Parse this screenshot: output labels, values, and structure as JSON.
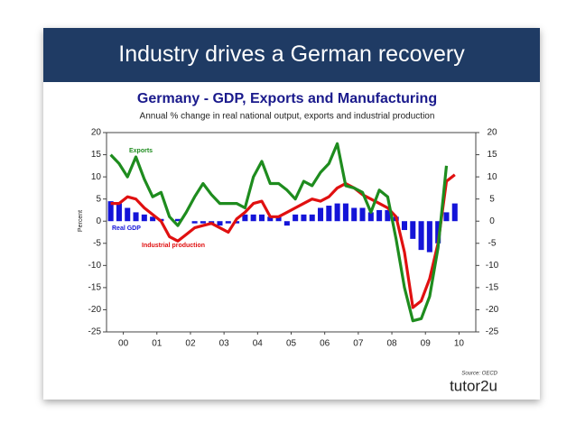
{
  "header": {
    "title": "Industry drives a German recovery"
  },
  "chart_data": {
    "type": "line",
    "title": "Germany - GDP, Exports and Manufacturing",
    "subtitle": "Annual % change in real national output, exports and industrial production",
    "y_label": "Percent",
    "source": "Source: OECD",
    "logo": "tutor2u",
    "annotations": [
      "Exports",
      "Real GDP",
      "Industrial production"
    ],
    "x": [
      2000.125,
      2000.375,
      2000.625,
      2000.875,
      2001.125,
      2001.375,
      2001.625,
      2001.875,
      2002.125,
      2002.375,
      2002.625,
      2002.875,
      2003.125,
      2003.375,
      2003.625,
      2003.875,
      2004.125,
      2004.375,
      2004.625,
      2004.875,
      2005.125,
      2005.375,
      2005.625,
      2005.875,
      2006.125,
      2006.375,
      2006.625,
      2006.875,
      2007.125,
      2007.375,
      2007.625,
      2007.875,
      2008.125,
      2008.375,
      2008.625,
      2008.875,
      2009.125,
      2009.375,
      2009.625,
      2009.875,
      2010.125,
      2010.375
    ],
    "xlim": [
      2000,
      2011
    ],
    "xticks": [
      {
        "value": 2000.5,
        "label": "00"
      },
      {
        "value": 2001.5,
        "label": "01"
      },
      {
        "value": 2002.5,
        "label": "02"
      },
      {
        "value": 2003.5,
        "label": "03"
      },
      {
        "value": 2004.5,
        "label": "04"
      },
      {
        "value": 2005.5,
        "label": "05"
      },
      {
        "value": 2006.5,
        "label": "06"
      },
      {
        "value": 2007.5,
        "label": "07"
      },
      {
        "value": 2008.5,
        "label": "08"
      },
      {
        "value": 2009.5,
        "label": "09"
      },
      {
        "value": 2010.5,
        "label": "10"
      }
    ],
    "ylim": [
      -25,
      20
    ],
    "yticks": [
      20,
      15,
      10,
      5,
      0,
      -5,
      -10,
      -15,
      -20,
      -25
    ],
    "y2lim": [
      -25,
      20
    ],
    "y2ticks": [
      20,
      15,
      10,
      5,
      0,
      -5,
      -10,
      -15,
      -20,
      -25
    ],
    "grid": false,
    "series": [
      {
        "name": "Real GDP",
        "type": "bar",
        "color": "#1414d8",
        "values": [
          4.5,
          4,
          3,
          2,
          1.5,
          1,
          0.5,
          0,
          0.5,
          0,
          -0.5,
          -0.5,
          -0.5,
          -1,
          -0.5,
          -0.5,
          1.5,
          1.5,
          1.5,
          1,
          1,
          -1,
          1.5,
          1.5,
          1.5,
          3,
          3.5,
          4,
          4,
          3,
          3,
          2,
          2.5,
          2.5,
          1,
          -2,
          -4,
          -6.5,
          -7,
          -5,
          2,
          4
        ]
      },
      {
        "name": "Industrial production",
        "type": "line",
        "color": "#e01010",
        "values": [
          4,
          4,
          5.5,
          5,
          3,
          1.5,
          0,
          -3.5,
          -4.5,
          -3,
          -1.5,
          -1,
          -0.5,
          -1.5,
          -2.5,
          0.5,
          2,
          4,
          4.5,
          1,
          1,
          2,
          3,
          4,
          5,
          4.5,
          5.5,
          7.5,
          8.5,
          7.5,
          6,
          5,
          4,
          3,
          1,
          -7,
          -19.5,
          -18,
          -13,
          -5,
          9,
          10.5
        ]
      },
      {
        "name": "Exports",
        "type": "line",
        "color": "#1e8c1e",
        "values": [
          15,
          13,
          10,
          14.5,
          9.5,
          5.5,
          6.5,
          1,
          -1,
          2,
          5.5,
          8.5,
          6,
          4,
          4,
          4,
          3,
          10,
          13.5,
          8.5,
          8.5,
          7,
          5,
          9,
          8,
          11,
          13,
          17.5,
          8,
          7.5,
          6.5,
          2,
          7,
          5.5,
          -4,
          -15,
          -22.5,
          -22,
          -17,
          -6,
          12.5,
          null
        ]
      }
    ]
  }
}
